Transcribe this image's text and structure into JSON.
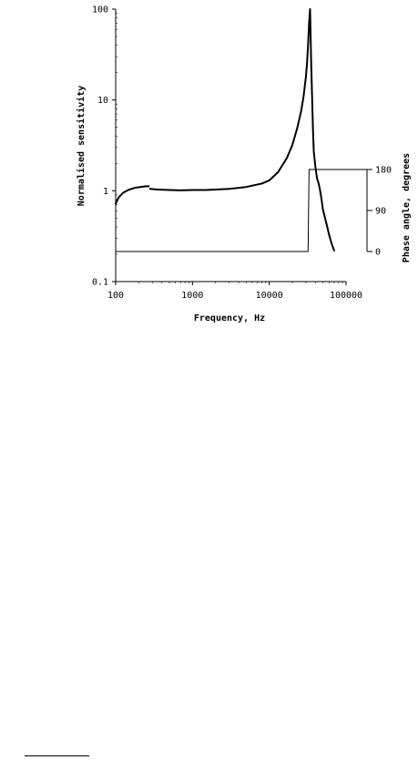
{
  "chart_data": {
    "type": "line",
    "xlabel": "Frequency, Hz",
    "ylabel": "Normalised sensitivity",
    "y2label": "Phase angle, degrees",
    "xscale": "log",
    "yscale": "log",
    "xlim": [
      100,
      100000
    ],
    "ylim": [
      0.1,
      100
    ],
    "y2lim": [
      0,
      180
    ],
    "x_ticks": [
      {
        "value": 100,
        "label": "100"
      },
      {
        "value": 1000,
        "label": "1000"
      },
      {
        "value": 10000,
        "label": "10000"
      },
      {
        "value": 100000,
        "label": "100000"
      }
    ],
    "y_ticks": [
      {
        "value": 100,
        "label": "100"
      },
      {
        "value": 10,
        "label": "10"
      },
      {
        "value": 1,
        "label": "1"
      },
      {
        "value": 0.1,
        "label": "0.1"
      }
    ],
    "y2_ticks": [
      {
        "value": 180,
        "label": "180"
      },
      {
        "value": 90,
        "label": "90"
      },
      {
        "value": 0,
        "label": "0"
      }
    ],
    "grid": false,
    "series": [
      {
        "axis": "left",
        "color": "#000000",
        "segments": [
          {
            "x": [
              100,
              110,
              125,
              150,
              180,
              210,
              250,
              270
            ],
            "y": [
              0.72,
              0.85,
              0.95,
              1.03,
              1.08,
              1.1,
              1.12,
              1.12
            ]
          },
          {
            "x": [
              280,
              350,
              500,
              700,
              1000,
              1500,
              2000,
              3000,
              5000,
              8000,
              10000,
              13000,
              17000,
              20000,
              23000,
              26000,
              28000,
              30000,
              31000,
              32000,
              33000,
              34000,
              35000,
              36000,
              37000,
              38000,
              40000,
              42000,
              44000,
              46000,
              48000,
              50000,
              55000,
              60000,
              65000,
              70000
            ],
            "y": [
              1.05,
              1.03,
              1.02,
              1.01,
              1.02,
              1.02,
              1.03,
              1.05,
              1.1,
              1.2,
              1.3,
              1.6,
              2.3,
              3.2,
              4.8,
              7.5,
              11,
              18,
              25,
              40,
              70,
              100,
              30,
              12,
              5,
              2.7,
              1.8,
              1.35,
              1.2,
              1.0,
              0.8,
              0.62,
              0.45,
              0.33,
              0.26,
              0.22
            ]
          }
        ]
      },
      {
        "axis": "right",
        "color": "#000000",
        "x": [
          100,
          32000,
          33000,
          70000
        ],
        "y": [
          0,
          0,
          180,
          180
        ]
      }
    ]
  }
}
